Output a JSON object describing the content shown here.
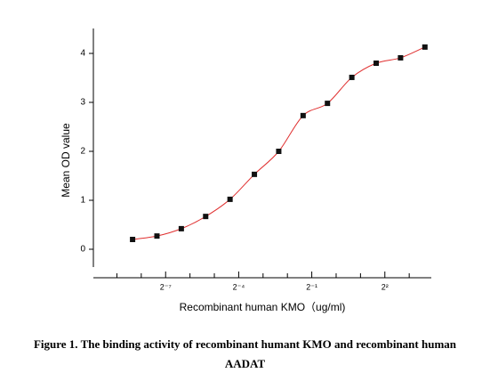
{
  "chart_data": {
    "type": "scatter",
    "xlabel": "Recombinant human  KMO（ug/ml)",
    "ylabel": "Mean OD value",
    "caption": "Figure 1. The binding activity of recombinant humant KMO and recombinant human AADAT",
    "x": [
      0.0030517578125,
      0.006103515625,
      0.01220703125,
      0.0244140625,
      0.048828125,
      0.09765625,
      0.1953125,
      0.390625,
      0.78125,
      1.5625,
      3.125,
      6.25,
      12.5
    ],
    "series": [
      {
        "color": "#e03030",
        "marker_color": "#111111",
        "values": [
          0.2,
          0.27,
          0.42,
          0.67,
          1.02,
          1.53,
          2.0,
          2.73,
          2.98,
          3.51,
          3.8,
          3.91,
          4.13
        ]
      }
    ],
    "xscale": "log2",
    "xlim": [
      0.001,
      15
    ],
    "xticks": [
      {
        "value": 0.0078125,
        "label": "2⁻⁷"
      },
      {
        "value": 0.0625,
        "label": "2⁻⁴"
      },
      {
        "value": 0.5,
        "label": "2⁻¹"
      },
      {
        "value": 4,
        "label": "2²"
      }
    ],
    "xminorticks": [
      0.001953125,
      0.00390625,
      0.015625,
      0.03125,
      0.125,
      0.25,
      1,
      2,
      8
    ],
    "ylim": [
      -0.36,
      4.5
    ],
    "yticks": [
      0,
      1,
      2,
      3,
      4
    ]
  }
}
